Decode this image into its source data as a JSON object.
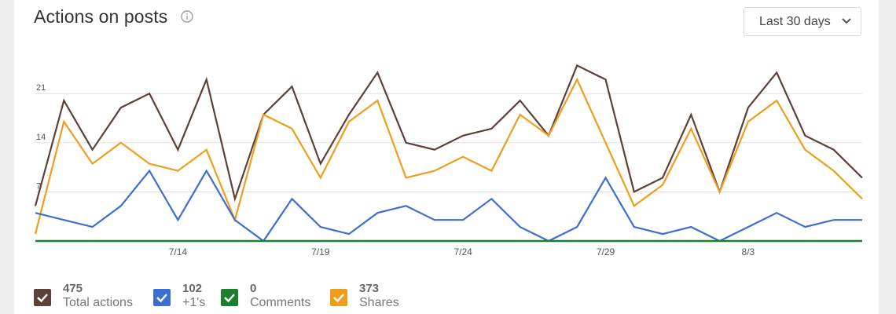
{
  "header": {
    "title": "Actions on posts",
    "info_icon": "info-icon",
    "range_label": "Last 30 days",
    "range_icon": "chevron-down-icon"
  },
  "colors": {
    "total": "#5d4037",
    "plus": "#3b6fd4",
    "comments": "#1b7f2e",
    "shares": "#f09d1b",
    "grid": "#e0e0e0"
  },
  "chart_data": {
    "type": "line",
    "ylim": [
      0,
      26.5
    ],
    "yticks": [
      "7",
      "14",
      "21"
    ],
    "ytick_values": [
      7,
      14,
      21
    ],
    "xtick_labels": [
      "7/14",
      "7/19",
      "7/24",
      "7/29",
      "8/3"
    ],
    "xtick_index": [
      5,
      10,
      15,
      20,
      25
    ],
    "grid": true,
    "series": [
      {
        "name": "Total actions",
        "key": "total",
        "values": [
          5,
          20,
          13,
          19,
          21,
          13,
          23,
          6,
          18,
          22,
          11,
          18,
          24,
          14,
          13,
          15,
          16,
          20,
          15,
          25,
          23,
          7,
          9,
          18,
          7,
          19,
          24,
          15,
          13,
          9
        ]
      },
      {
        "name": "Shares",
        "key": "shares",
        "values": [
          1,
          17,
          11,
          14,
          11,
          10,
          13,
          3,
          18,
          16,
          9,
          17,
          20,
          9,
          10,
          12,
          10,
          18,
          15,
          23,
          14,
          5,
          8,
          16,
          7,
          17,
          20,
          13,
          10,
          6
        ]
      },
      {
        "name": "+1's",
        "key": "plus",
        "values": [
          4,
          3,
          2,
          5,
          10,
          3,
          10,
          3,
          0,
          6,
          2,
          1,
          4,
          5,
          3,
          3,
          6,
          2,
          0,
          2,
          9,
          2,
          1,
          2,
          0,
          2,
          4,
          2,
          3,
          3
        ]
      },
      {
        "name": "Comments",
        "key": "comments",
        "values": [
          0,
          0,
          0,
          0,
          0,
          0,
          0,
          0,
          0,
          0,
          0,
          0,
          0,
          0,
          0,
          0,
          0,
          0,
          0,
          0,
          0,
          0,
          0,
          0,
          0,
          0,
          0,
          0,
          0,
          0
        ]
      }
    ]
  },
  "legend": [
    {
      "value": "475",
      "label": "Total actions",
      "key": "total"
    },
    {
      "value": "102",
      "label": "+1's",
      "key": "plus"
    },
    {
      "value": "0",
      "label": "Comments",
      "key": "comments"
    },
    {
      "value": "373",
      "label": "Shares",
      "key": "shares"
    }
  ]
}
